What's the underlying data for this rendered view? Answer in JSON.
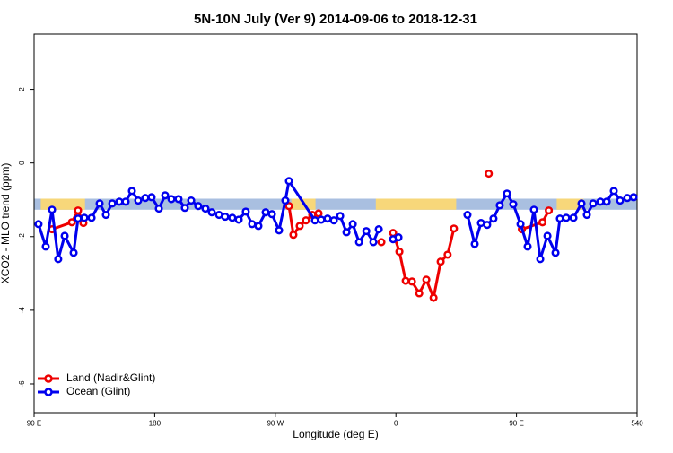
{
  "chart_data": {
    "type": "line",
    "title": "5N-10N July (Ver 9)   2014-09-06 to 2018-12-31",
    "xlabel": "Longitude (deg E)",
    "ylabel": "XCO2 - MLO trend (ppm)",
    "xlim": [
      90,
      540
    ],
    "xticks": [
      {
        "value": 90,
        "label": "90 E"
      },
      180,
      {
        "value": 270,
        "label": "90 W"
      },
      {
        "value": 360,
        "label": "0"
      },
      {
        "value": 450,
        "label": "90 E"
      },
      540
    ],
    "ylim": [
      -6.78,
      3.5
    ],
    "yticks": [
      2,
      0,
      -2,
      -4,
      -6
    ],
    "band": {
      "ylim": [
        -1.27,
        -0.97
      ],
      "color": "#a9bfe0"
    },
    "land_regions": {
      "color": "#f7d77a",
      "ranges": [
        [
          95,
          128
        ],
        [
          282,
          300
        ],
        [
          345,
          405
        ],
        [
          480,
          500
        ]
      ]
    },
    "legend": "bottom-left",
    "series": [
      {
        "name": "Land (Nadir&Glint)",
        "color": "#ee0000",
        "x": [
          103.4,
          118.2,
          122.8,
          126.8,
          null,
          280.2,
          283.5,
          288.2,
          292.9,
          297.6,
          302.3,
          null,
          349.2,
          null,
          357.9,
          362.6,
          367.3,
          372,
          377.4,
          382.7,
          388.1,
          393.4,
          398.6,
          403.3,
          null,
          429.3,
          null,
          454,
          469.4,
          474.1
        ],
        "values": [
          -1.8,
          -1.61,
          -1.29,
          -1.63,
          null,
          -1.17,
          -1.95,
          -1.71,
          -1.56,
          -1.41,
          -1.37,
          null,
          -2.15,
          null,
          -1.9,
          -2.41,
          -3.2,
          -3.22,
          -3.54,
          -3.17,
          -3.66,
          -2.68,
          -2.49,
          -1.78,
          null,
          -0.29,
          null,
          -1.8,
          -1.61,
          -1.29
        ]
      },
      {
        "name": "Ocean (Glint)",
        "color": "#0000ee",
        "x": [
          93.3,
          98.7,
          103.4,
          108,
          112.8,
          119.5,
          122.8,
          127.5,
          132.9,
          138.9,
          143.6,
          148.3,
          153.6,
          158.3,
          163,
          167.7,
          173,
          177.7,
          183.1,
          187.8,
          192.5,
          197.8,
          202.5,
          207.2,
          212.5,
          217.9,
          222.6,
          228,
          232.6,
          237.9,
          242.7,
          248,
          252.7,
          257.4,
          262.8,
          267.5,
          272.8,
          277.5,
          280.2,
          299.6,
          304.3,
          309,
          313.7,
          318.4,
          323.1,
          327.8,
          332.5,
          337.9,
          343.2,
          347.2,
          null,
          357.9,
          361.9,
          null,
          413.4,
          418.8,
          423.5,
          428.1,
          432.8,
          437.5,
          442.9,
          447.6,
          453,
          458.3,
          463,
          467.7,
          473.1,
          479.1,
          482.4,
          487.1,
          492.5,
          498.5,
          502.5,
          507.2,
          512.6,
          517.3,
          522.6,
          527.3,
          532.7,
          537.4
        ],
        "values": [
          -1.66,
          -2.27,
          -1.27,
          -2.61,
          -1.98,
          -2.44,
          -1.51,
          -1.49,
          -1.49,
          -1.1,
          -1.41,
          -1.1,
          -1.05,
          -1.05,
          -0.76,
          -1.02,
          -0.95,
          -0.93,
          -1.24,
          -0.88,
          -0.98,
          -0.98,
          -1.22,
          -1.02,
          -1.17,
          -1.24,
          -1.34,
          -1.41,
          -1.46,
          -1.49,
          -1.54,
          -1.32,
          -1.66,
          -1.71,
          -1.34,
          -1.39,
          -1.83,
          -1.02,
          -0.49,
          -1.56,
          -1.54,
          -1.51,
          -1.56,
          -1.44,
          -1.88,
          -1.66,
          -2.15,
          -1.85,
          -2.15,
          -1.8,
          null,
          -2.07,
          -2.02,
          null,
          -1.41,
          -2.2,
          -1.63,
          -1.68,
          -1.51,
          -1.15,
          -0.83,
          -1.12,
          -1.66,
          -2.27,
          -1.27,
          -2.61,
          -1.98,
          -2.44,
          -1.51,
          -1.49,
          -1.49,
          -1.1,
          -1.41,
          -1.1,
          -1.05,
          -1.05,
          -0.76,
          -1.02,
          -0.95,
          -0.93
        ]
      }
    ]
  }
}
